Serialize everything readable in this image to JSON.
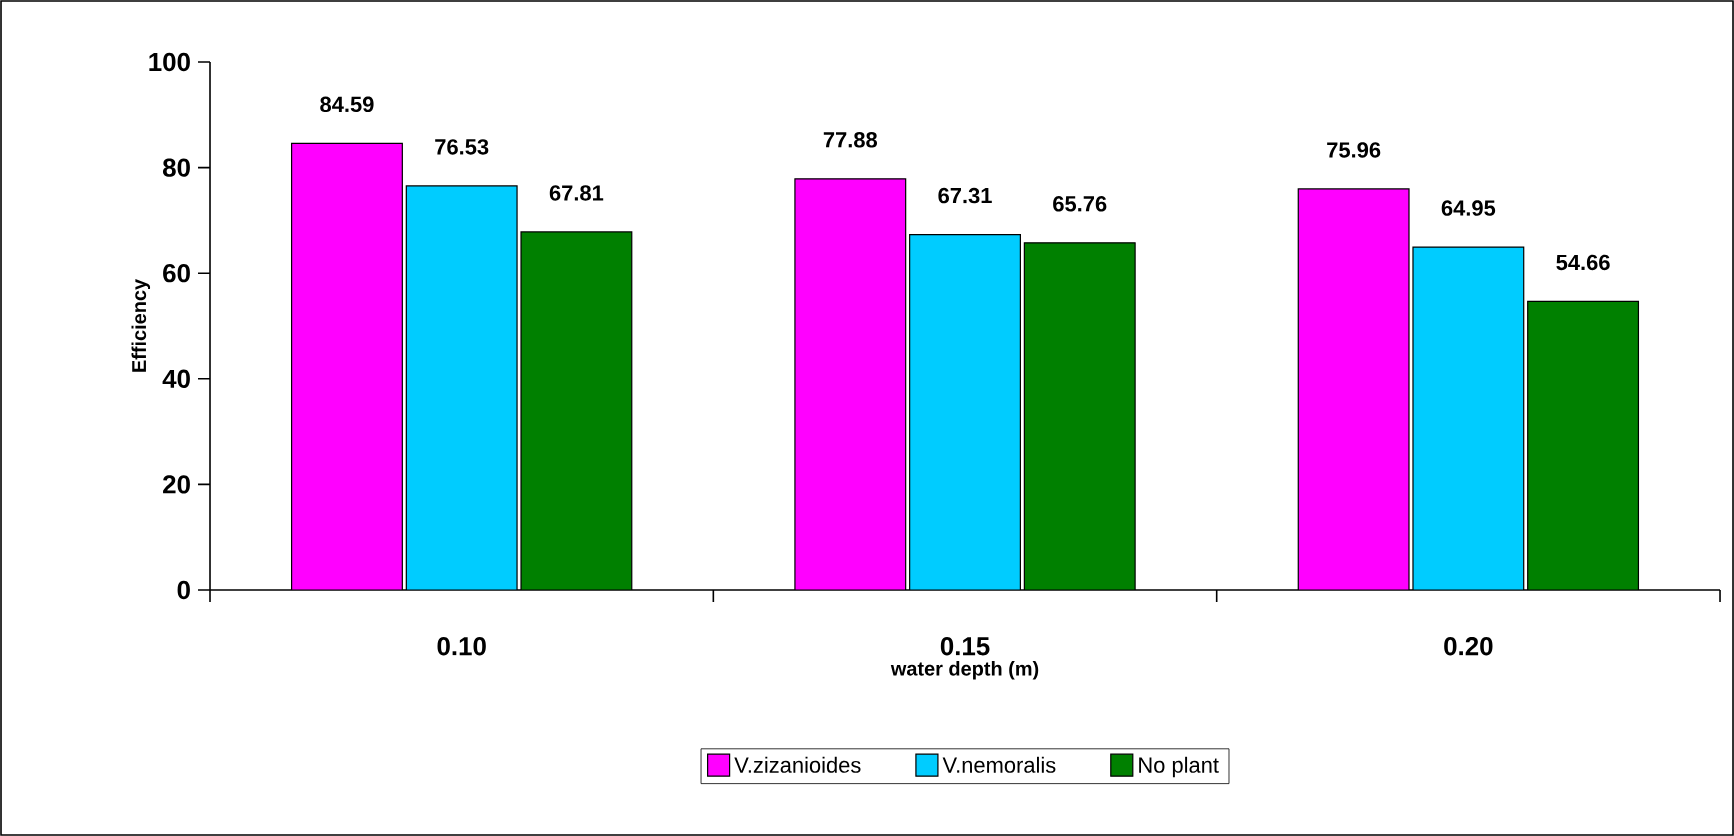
{
  "chart_data": {
    "type": "bar",
    "xlabel": "water depth (m)",
    "ylabel": "Efficiency",
    "categories": [
      "0.10",
      "0.15",
      "0.20"
    ],
    "series": [
      {
        "name": "V.zizanioides",
        "color": "#ff00ff",
        "values": [
          84.59,
          77.88,
          75.96
        ]
      },
      {
        "name": "V.nemoralis",
        "color": "#00ccff",
        "values": [
          76.53,
          67.31,
          64.95
        ]
      },
      {
        "name": "No plant",
        "color": "#008000",
        "values": [
          67.81,
          65.76,
          54.66
        ]
      }
    ],
    "ylim": [
      0,
      100
    ],
    "yticks": [
      0,
      20,
      40,
      60,
      80,
      100
    ],
    "data_labels": true,
    "legend": "bottom",
    "grid": false
  }
}
